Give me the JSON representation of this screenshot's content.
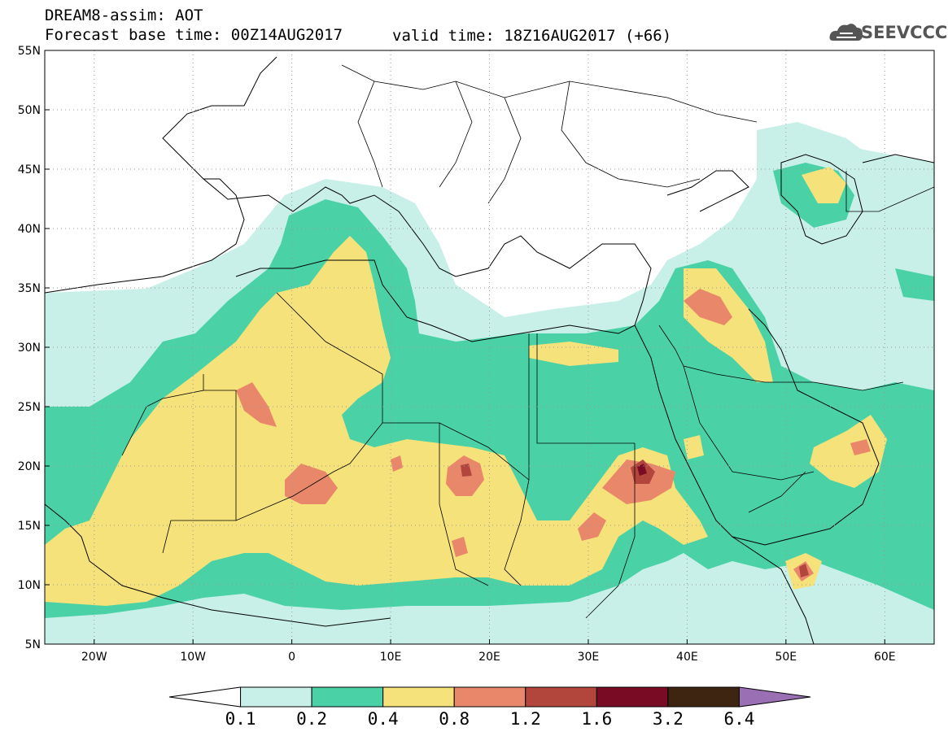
{
  "header": {
    "line1": "DREAM8-assim: AOT",
    "line2": "Forecast base time: 00Z14AUG2017",
    "valid": "valid time: 18Z16AUG2017 (+66)",
    "logo_text": "SEEVCCC",
    "logo_icon": "cloud-icon"
  },
  "axes": {
    "lat_ticks": [
      "55N",
      "50N",
      "45N",
      "40N",
      "35N",
      "30N",
      "25N",
      "20N",
      "15N",
      "10N",
      "5N"
    ],
    "lon_ticks": [
      "20W",
      "10W",
      "0",
      "10E",
      "20E",
      "30E",
      "40E",
      "50E",
      "60E"
    ],
    "lon_range": [
      -25,
      65
    ],
    "lat_range": [
      5,
      55
    ]
  },
  "legend": {
    "levels": [
      "0.1",
      "0.2",
      "0.4",
      "0.8",
      "1.2",
      "1.6",
      "3.2",
      "6.4"
    ],
    "colors": [
      "#ffffff",
      "#c8f0e8",
      "#4ad2a6",
      "#f6e27a",
      "#e8876a",
      "#b3463c",
      "#7a0b25",
      "#3e2511",
      "#9b6fb3"
    ]
  },
  "colors": {
    "level1": "#c8f0e8",
    "level2": "#4ad2a6",
    "level3": "#f6e27a",
    "level4": "#e8876a",
    "level5": "#b3463c",
    "level6": "#7a0b25"
  }
}
